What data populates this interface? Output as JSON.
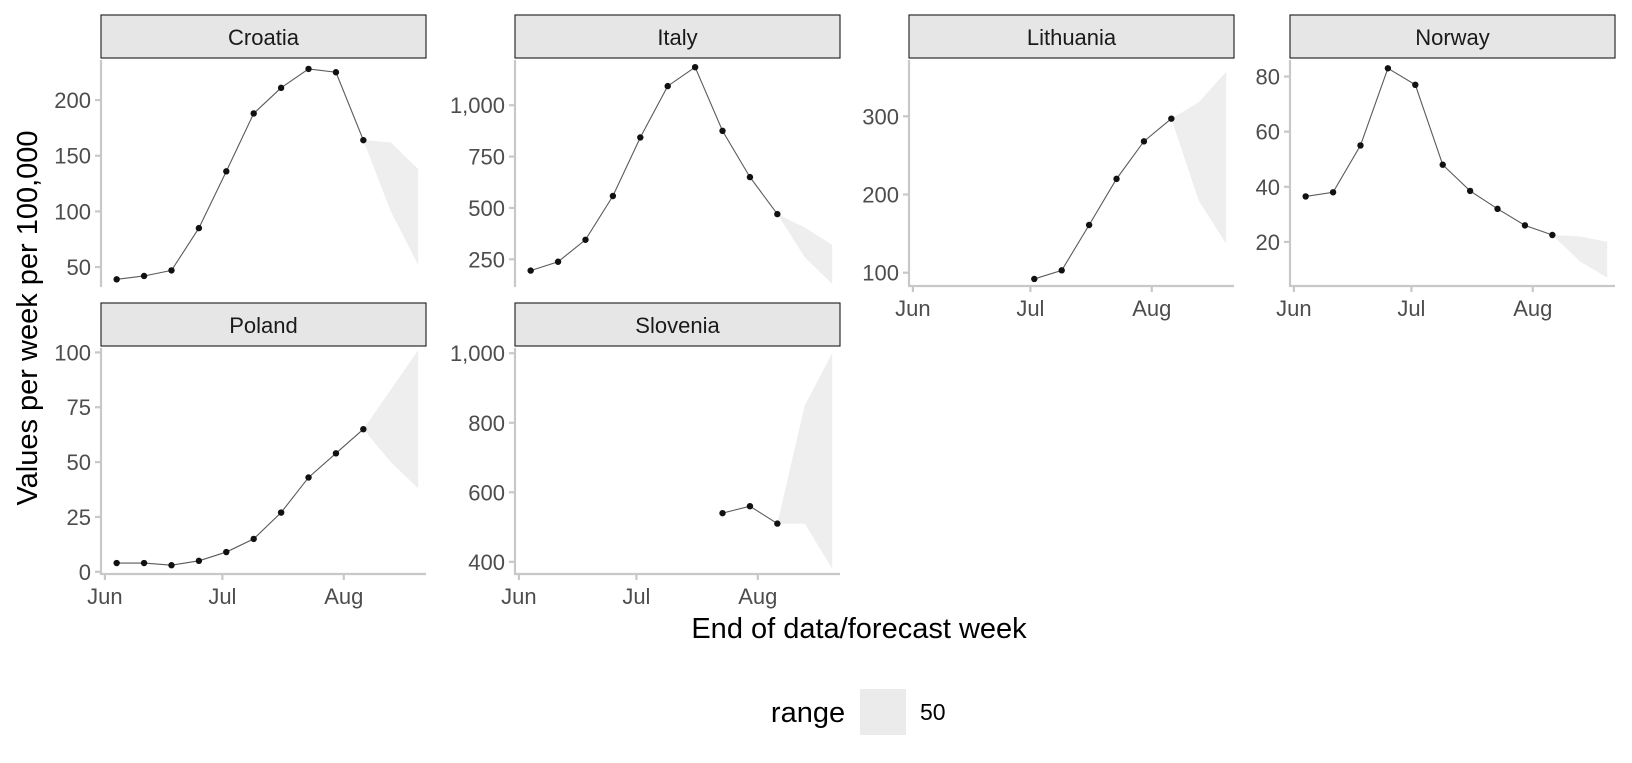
{
  "chart_data": {
    "type": "line",
    "xlabel": "End of data/forecast week",
    "ylabel": "Values per week per 100,000",
    "legend": {
      "title": "range",
      "placement": "bottom",
      "items": [
        {
          "label": "50",
          "color": "#ebebeb"
        }
      ]
    },
    "grid": false,
    "x_ticks": [
      {
        "label": "Jun",
        "date": "2021-06-01"
      },
      {
        "label": "Jul",
        "date": "2021-07-01"
      },
      {
        "label": "Aug",
        "date": "2021-08-01"
      }
    ],
    "xlim": [
      "2021-05-31",
      "2021-08-22"
    ],
    "panels": [
      {
        "name": "Croatia",
        "ylim": [
          33,
          236
        ],
        "y_ticks": [
          {
            "value": 50,
            "label": "50"
          },
          {
            "value": 100,
            "label": "100"
          },
          {
            "value": 150,
            "label": "150"
          },
          {
            "value": 200,
            "label": "200"
          }
        ],
        "series": [
          {
            "x": "2021-06-04",
            "y": 39
          },
          {
            "x": "2021-06-11",
            "y": 42
          },
          {
            "x": "2021-06-18",
            "y": 47
          },
          {
            "x": "2021-06-25",
            "y": 85
          },
          {
            "x": "2021-07-02",
            "y": 136
          },
          {
            "x": "2021-07-09",
            "y": 188
          },
          {
            "x": "2021-07-16",
            "y": 211
          },
          {
            "x": "2021-07-23",
            "y": 228
          },
          {
            "x": "2021-07-30",
            "y": 225
          },
          {
            "x": "2021-08-06",
            "y": 164
          }
        ],
        "range50": [
          {
            "x": "2021-08-06",
            "lower": 164,
            "upper": 164
          },
          {
            "x": "2021-08-13",
            "lower": 100,
            "upper": 162
          },
          {
            "x": "2021-08-20",
            "lower": 52,
            "upper": 138
          }
        ]
      },
      {
        "name": "Italy",
        "ylim": [
          120,
          1220
        ],
        "y_ticks": [
          {
            "value": 250,
            "label": "250"
          },
          {
            "value": 500,
            "label": "500"
          },
          {
            "value": 750,
            "label": "750"
          },
          {
            "value": 1000,
            "label": "1,000"
          }
        ],
        "series": [
          {
            "x": "2021-06-04",
            "y": 195
          },
          {
            "x": "2021-06-11",
            "y": 238
          },
          {
            "x": "2021-06-18",
            "y": 345
          },
          {
            "x": "2021-06-25",
            "y": 558
          },
          {
            "x": "2021-07-02",
            "y": 843
          },
          {
            "x": "2021-07-09",
            "y": 1093
          },
          {
            "x": "2021-07-16",
            "y": 1185
          },
          {
            "x": "2021-07-23",
            "y": 875
          },
          {
            "x": "2021-07-30",
            "y": 650
          },
          {
            "x": "2021-08-06",
            "y": 470
          }
        ],
        "range50": [
          {
            "x": "2021-08-06",
            "lower": 470,
            "upper": 470
          },
          {
            "x": "2021-08-13",
            "lower": 260,
            "upper": 405
          },
          {
            "x": "2021-08-20",
            "lower": 130,
            "upper": 320
          }
        ]
      },
      {
        "name": "Lithuania",
        "ylim": [
          83,
          372
        ],
        "y_ticks": [
          {
            "value": 100,
            "label": "100"
          },
          {
            "value": 200,
            "label": "200"
          },
          {
            "value": 300,
            "label": "300"
          }
        ],
        "series": [
          {
            "x": "2021-07-02",
            "y": 92
          },
          {
            "x": "2021-07-09",
            "y": 103
          },
          {
            "x": "2021-07-16",
            "y": 161
          },
          {
            "x": "2021-07-23",
            "y": 220
          },
          {
            "x": "2021-07-30",
            "y": 268
          },
          {
            "x": "2021-08-06",
            "y": 297
          }
        ],
        "range50": [
          {
            "x": "2021-08-06",
            "lower": 297,
            "upper": 297
          },
          {
            "x": "2021-08-13",
            "lower": 192,
            "upper": 318
          },
          {
            "x": "2021-08-20",
            "lower": 137,
            "upper": 357
          }
        ]
      },
      {
        "name": "Norway",
        "ylim": [
          4,
          86
        ],
        "y_ticks": [
          {
            "value": 20,
            "label": "20"
          },
          {
            "value": 40,
            "label": "40"
          },
          {
            "value": 60,
            "label": "60"
          },
          {
            "value": 80,
            "label": "80"
          }
        ],
        "series": [
          {
            "x": "2021-06-04",
            "y": 36.5
          },
          {
            "x": "2021-06-11",
            "y": 38
          },
          {
            "x": "2021-06-18",
            "y": 55
          },
          {
            "x": "2021-06-25",
            "y": 83
          },
          {
            "x": "2021-07-02",
            "y": 77
          },
          {
            "x": "2021-07-09",
            "y": 48
          },
          {
            "x": "2021-07-16",
            "y": 38.5
          },
          {
            "x": "2021-07-23",
            "y": 32
          },
          {
            "x": "2021-07-30",
            "y": 26
          },
          {
            "x": "2021-08-06",
            "y": 22.5
          }
        ],
        "range50": [
          {
            "x": "2021-08-06",
            "lower": 22.5,
            "upper": 22.5
          },
          {
            "x": "2021-08-13",
            "lower": 13,
            "upper": 22
          },
          {
            "x": "2021-08-20",
            "lower": 7,
            "upper": 20
          }
        ]
      },
      {
        "name": "Poland",
        "ylim": [
          -1,
          102
        ],
        "y_ticks": [
          {
            "value": 0,
            "label": "0"
          },
          {
            "value": 25,
            "label": "25"
          },
          {
            "value": 50,
            "label": "50"
          },
          {
            "value": 75,
            "label": "75"
          },
          {
            "value": 100,
            "label": "100"
          }
        ],
        "series": [
          {
            "x": "2021-06-04",
            "y": 4
          },
          {
            "x": "2021-06-11",
            "y": 4
          },
          {
            "x": "2021-06-18",
            "y": 3
          },
          {
            "x": "2021-06-25",
            "y": 5
          },
          {
            "x": "2021-07-02",
            "y": 9
          },
          {
            "x": "2021-07-09",
            "y": 15
          },
          {
            "x": "2021-07-16",
            "y": 27
          },
          {
            "x": "2021-07-23",
            "y": 43
          },
          {
            "x": "2021-07-30",
            "y": 54
          },
          {
            "x": "2021-08-06",
            "y": 65
          }
        ],
        "range50": [
          {
            "x": "2021-08-06",
            "lower": 65,
            "upper": 65
          },
          {
            "x": "2021-08-13",
            "lower": 50,
            "upper": 83
          },
          {
            "x": "2021-08-20",
            "lower": 38,
            "upper": 101
          }
        ]
      },
      {
        "name": "Slovenia",
        "ylim": [
          365,
          1015
        ],
        "y_ticks": [
          {
            "value": 400,
            "label": "400"
          },
          {
            "value": 600,
            "label": "600"
          },
          {
            "value": 800,
            "label": "800"
          },
          {
            "value": 1000,
            "label": "1,000"
          }
        ],
        "series": [
          {
            "x": "2021-07-23",
            "y": 540
          },
          {
            "x": "2021-07-30",
            "y": 560
          },
          {
            "x": "2021-08-06",
            "y": 510
          }
        ],
        "range50": [
          {
            "x": "2021-08-06",
            "lower": 510,
            "upper": 510
          },
          {
            "x": "2021-08-13",
            "lower": 510,
            "upper": 850
          },
          {
            "x": "2021-08-20",
            "lower": 380,
            "upper": 1000
          }
        ]
      }
    ]
  }
}
